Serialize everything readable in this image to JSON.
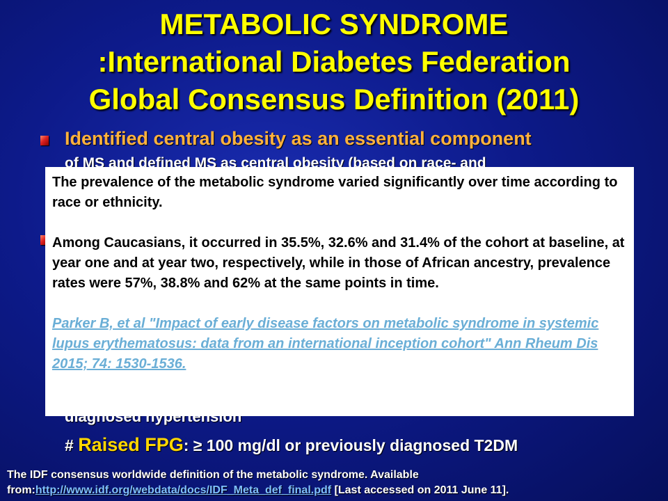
{
  "title": {
    "line1": "METABOLIC SYNDROME",
    "line2": ":International Diabetes Federation",
    "line3": "Global Consensus Definition (2011)"
  },
  "bullet1": {
    "line1": "Identified central obesity as an essential component",
    "line2": "of MS and defined MS as central obesity (based on race- and"
  },
  "criteria": {
    "partial_line": "diagnosed hypertension",
    "fpg_prefix": "# ",
    "fpg_label": "Raised FPG",
    "fpg_rest": ": ≥ 100 mg/dl or previously diagnosed T2DM"
  },
  "popup": {
    "para1": "The prevalence of the metabolic syndrome varied significantly over time according to race or ethnicity.",
    "para2": "Among Caucasians, it occurred in 35.5%, 32.6% and 31.4% of the cohort at baseline, at year one and at year two, respectively, while in those of African ancestry, prevalence rates were 57%, 38.8% and 62% at the same points in time.",
    "reference": "Parker B, et al \"Impact of early disease factors on metabolic syndrome in systemic lupus erythematosus: data from an international inception cohort\" Ann Rheum Dis 2015; 74: 1530-1536."
  },
  "footer": {
    "line1": "The IDF consensus worldwide definition of the metabolic syndrome. Available",
    "prefix": "from:",
    "link": "http://www.idf.org/webdata/docs/IDF_Meta_def_final.pdf",
    "suffix": " [Last accessed on 2011 June 11]."
  }
}
